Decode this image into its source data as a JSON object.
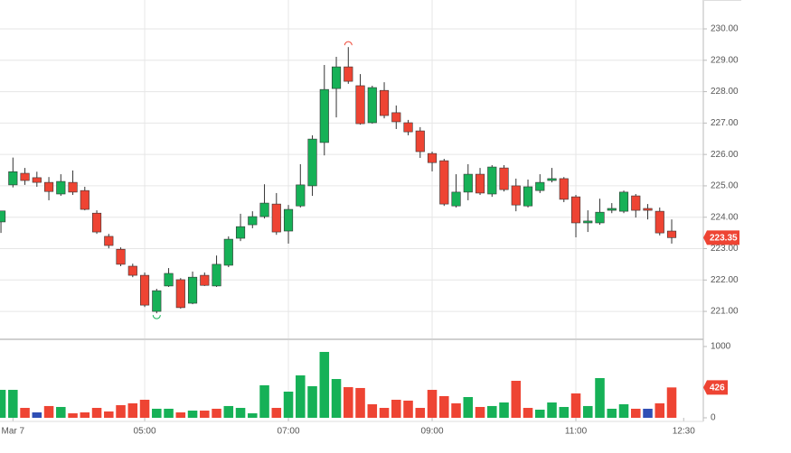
{
  "chart_data": {
    "type": "candlestick",
    "up_color": "#16b157",
    "down_color": "#ee4433",
    "open": [
      223.85,
      225.03,
      225.4,
      225.26,
      225.11,
      224.74,
      225.11,
      224.85,
      224.13,
      223.39,
      222.98,
      222.44,
      222.15,
      221.0,
      221.81,
      222.01,
      221.26,
      222.15,
      221.81,
      222.47,
      223.33,
      223.76,
      224.02,
      224.42,
      223.56,
      224.36,
      225.0,
      226.38,
      228.1,
      228.79,
      228.19,
      227.01,
      228.04,
      227.33,
      227.01,
      226.75,
      226.03,
      225.8,
      224.36,
      224.8,
      225.37,
      224.74,
      225.57,
      225.0,
      224.36,
      224.85,
      225.17,
      225.23,
      224.65,
      223.82,
      223.82,
      224.22,
      224.19,
      224.68,
      224.28,
      224.19,
      223.56
    ],
    "high": [
      224.2,
      225.9,
      225.57,
      225.45,
      225.28,
      225.37,
      225.49,
      224.97,
      224.22,
      223.47,
      223.04,
      222.52,
      222.24,
      221.72,
      222.38,
      222.06,
      222.27,
      222.24,
      222.78,
      223.39,
      224.11,
      224.19,
      225.05,
      224.77,
      224.39,
      225.69,
      226.61,
      228.85,
      229.11,
      229.42,
      228.56,
      228.19,
      228.3,
      227.56,
      227.1,
      226.87,
      226.09,
      225.86,
      225.37,
      225.69,
      225.57,
      225.66,
      225.66,
      225.23,
      225.2,
      225.37,
      225.57,
      225.28,
      224.71,
      224.22,
      224.59,
      224.45,
      224.85,
      224.74,
      224.42,
      224.31,
      223.93
    ],
    "low": [
      223.5,
      224.95,
      225.03,
      224.97,
      224.54,
      224.68,
      224.71,
      224.22,
      223.47,
      223.01,
      222.44,
      222.09,
      221.14,
      220.94,
      221.78,
      221.09,
      221.23,
      221.81,
      221.78,
      222.41,
      223.24,
      223.65,
      223.96,
      223.44,
      223.16,
      224.31,
      224.68,
      225.97,
      227.18,
      228.25,
      226.95,
      226.98,
      227.15,
      226.81,
      226.61,
      225.89,
      225.46,
      224.36,
      224.31,
      224.54,
      224.71,
      224.65,
      224.82,
      224.19,
      224.31,
      224.77,
      225.11,
      224.48,
      223.36,
      223.53,
      223.76,
      224.13,
      224.13,
      223.99,
      223.93,
      223.42,
      223.16
    ],
    "close": [
      224.2,
      225.45,
      225.17,
      225.11,
      224.82,
      225.14,
      224.8,
      224.25,
      223.53,
      223.1,
      222.5,
      222.15,
      221.2,
      221.66,
      222.21,
      221.12,
      222.09,
      221.83,
      222.5,
      223.3,
      223.7,
      224.02,
      224.45,
      223.53,
      224.25,
      225.03,
      226.49,
      228.07,
      228.79,
      228.33,
      226.98,
      228.13,
      227.24,
      227.04,
      226.72,
      226.09,
      225.74,
      224.42,
      224.8,
      225.37,
      224.77,
      225.6,
      224.88,
      224.39,
      224.97,
      225.11,
      225.23,
      224.57,
      223.82,
      223.88,
      224.16,
      224.28,
      224.8,
      224.22,
      224.22,
      223.5,
      223.35
    ],
    "volume": [
      392,
      392,
      139,
      76,
      165,
      152,
      63,
      76,
      139,
      89,
      177,
      203,
      253,
      127,
      127,
      76,
      101,
      101,
      127,
      165,
      139,
      63,
      456,
      139,
      367,
      595,
      443,
      924,
      544,
      430,
      418,
      190,
      139,
      253,
      241,
      139,
      392,
      304,
      203,
      291,
      152,
      165,
      215,
      519,
      139,
      114,
      215,
      152,
      342,
      165,
      557,
      127,
      190,
      127,
      127,
      203,
      426
    ],
    "volume_colors": [
      "#16b157",
      "#16b157",
      "#ee4433",
      "#2f4fb5",
      "#ee4433",
      "#16b157",
      "#ee4433",
      "#ee4433",
      "#ee4433",
      "#ee4433",
      "#ee4433",
      "#ee4433",
      "#ee4433",
      "#16b157",
      "#16b157",
      "#ee4433",
      "#16b157",
      "#ee4433",
      "#ee4433",
      "#16b157",
      "#16b157",
      "#16b157",
      "#16b157",
      "#ee4433",
      "#16b157",
      "#16b157",
      "#16b157",
      "#16b157",
      "#16b157",
      "#ee4433",
      "#ee4433",
      "#ee4433",
      "#ee4433",
      "#ee4433",
      "#ee4433",
      "#ee4433",
      "#ee4433",
      "#ee4433",
      "#ee4433",
      "#16b157",
      "#ee4433",
      "#16b157",
      "#16b157",
      "#ee4433",
      "#ee4433",
      "#16b157",
      "#16b157",
      "#16b157",
      "#ee4433",
      "#16b157",
      "#16b157",
      "#16b157",
      "#16b157",
      "#ee4433",
      "#2f4fb5",
      "#ee4433",
      "#ee4433"
    ],
    "xlim": [
      -0.08,
      58.64
    ],
    "xticks": [
      {
        "value": 1,
        "label": "Mar 7"
      },
      {
        "value": 12,
        "label": "05:00"
      },
      {
        "value": 24,
        "label": "07:00"
      },
      {
        "value": 36,
        "label": "09:00"
      },
      {
        "value": 48,
        "label": "11:00"
      },
      {
        "value": 57,
        "label": "12:30"
      }
    ],
    "ylim": [
      220.14,
      230.92
    ],
    "yticks": [
      {
        "value": 221,
        "label": "221.00"
      },
      {
        "value": 222,
        "label": "222.00"
      },
      {
        "value": 223,
        "label": "223.00"
      },
      {
        "value": 224,
        "label": "224.00"
      },
      {
        "value": 225,
        "label": "225.00"
      },
      {
        "value": 226,
        "label": "226.00"
      },
      {
        "value": 227,
        "label": "227.00"
      },
      {
        "value": 228,
        "label": "228.00"
      },
      {
        "value": 229,
        "label": "229.00"
      },
      {
        "value": 230,
        "label": "230.00"
      }
    ],
    "vlim": [
      0,
      1101
    ],
    "vticks": [
      0,
      1000
    ],
    "grid": true
  }
}
